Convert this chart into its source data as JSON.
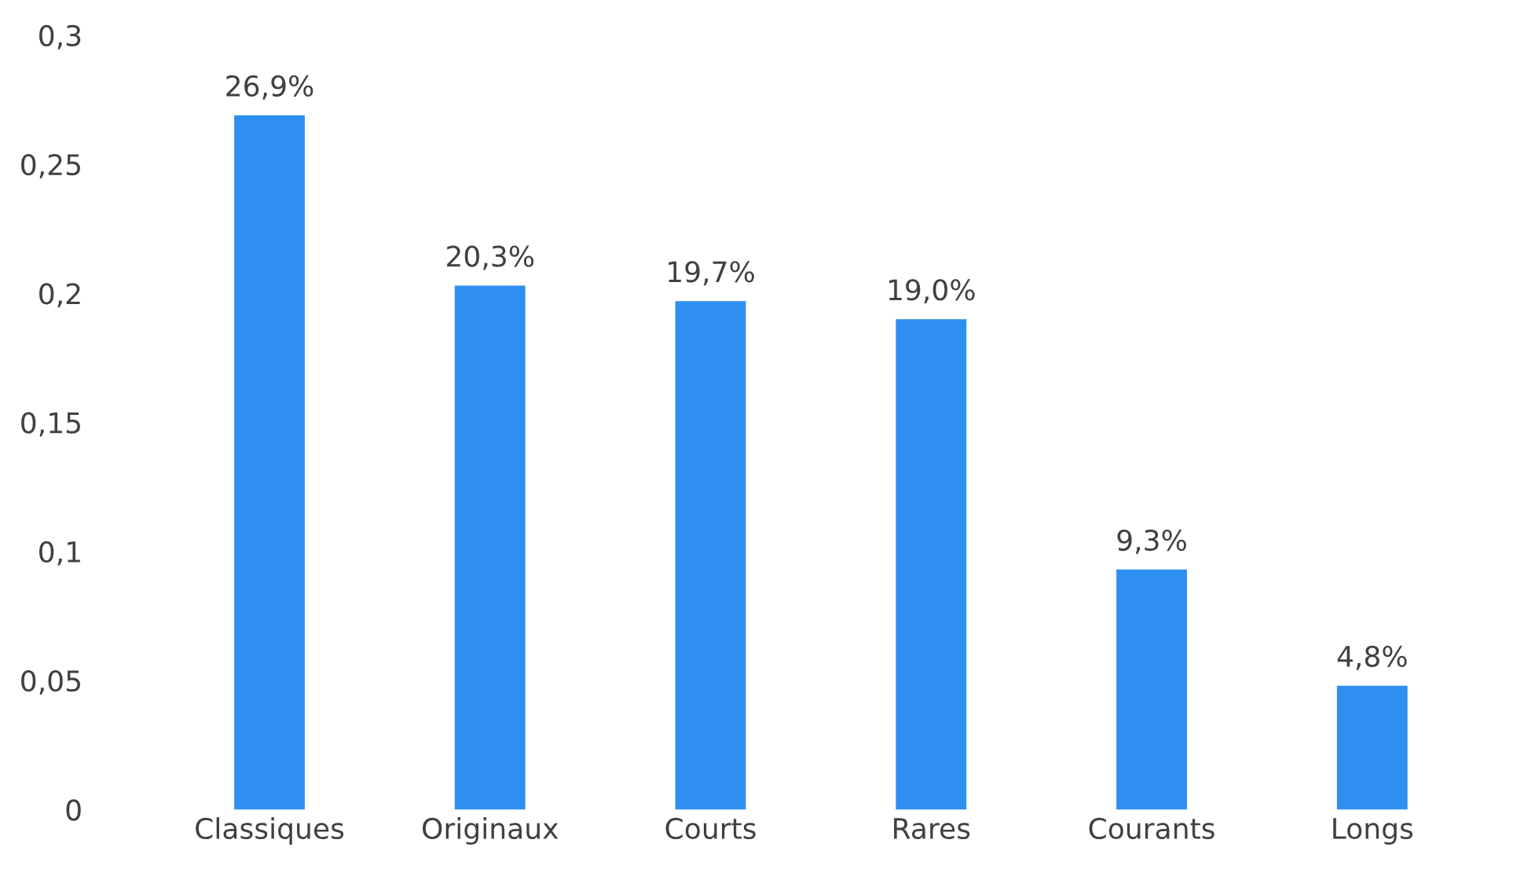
{
  "chart_data": {
    "type": "bar",
    "categories": [
      "Classiques",
      "Originaux",
      "Courts",
      "Rares",
      "Courants",
      "Longs"
    ],
    "values": [
      0.269,
      0.203,
      0.197,
      0.19,
      0.093,
      0.048
    ],
    "value_labels": [
      "26,9%",
      "20,3%",
      "19,7%",
      "19,0%",
      "9,3%",
      "4,8%"
    ],
    "color": "#2e8ff0",
    "ylim": [
      0,
      0.3
    ],
    "yticks": [
      {
        "value": 0,
        "label": "0"
      },
      {
        "value": 0.05,
        "label": "0,05"
      },
      {
        "value": 0.1,
        "label": "0,1"
      },
      {
        "value": 0.15,
        "label": "0,15"
      },
      {
        "value": 0.2,
        "label": "0,2"
      },
      {
        "value": 0.25,
        "label": "0,25"
      },
      {
        "value": 0.3,
        "label": "0,3"
      }
    ],
    "grid": false,
    "legend": false
  }
}
